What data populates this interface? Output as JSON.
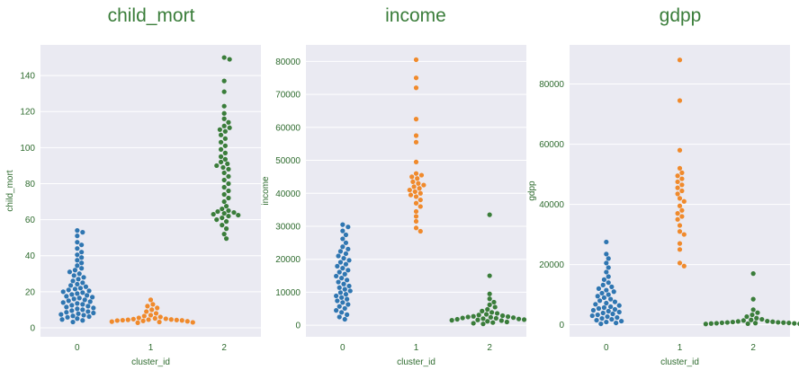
{
  "colors": {
    "title": "#3a7d3a",
    "label": "#2e6b2e",
    "tick": "#2e6b2e",
    "plot_bg": "#eaeaf2",
    "grid": "#ffffff",
    "cluster_0": "#2f76b1",
    "cluster_1": "#f08a2c",
    "cluster_2": "#3a7d3a"
  },
  "chart_data": [
    {
      "type": "scatter",
      "subtype": "swarm",
      "title": "child_mort",
      "xlabel": "cluster_id",
      "ylabel": "child_mort",
      "categories": [
        "0",
        "1",
        "2"
      ],
      "ylim": [
        -5,
        157
      ],
      "yticks": [
        0,
        20,
        40,
        60,
        80,
        100,
        120,
        140
      ],
      "grid": true,
      "series": [
        {
          "category": "0",
          "values": [
            3.2,
            4.1,
            4.6,
            5.1,
            5.8,
            6.2,
            6.6,
            7.0,
            7.4,
            7.8,
            8.2,
            8.6,
            9.0,
            9.5,
            10.0,
            10.5,
            11.0,
            11.5,
            12.0,
            12.5,
            13.0,
            13.5,
            14.0,
            14.5,
            15.0,
            15.5,
            16.0,
            16.5,
            17.0,
            17.5,
            18.0,
            18.5,
            19.0,
            19.5,
            20.0,
            20.5,
            21.0,
            21.5,
            22.0,
            22.8,
            23.5,
            24.2,
            25.0,
            26.0,
            27.0,
            28.0,
            29.0,
            30.0,
            31.0,
            32.0,
            33.0,
            34.5,
            36.0,
            37.5,
            39.0,
            40.5,
            42.0,
            44.0,
            46.0,
            47.5,
            51.0,
            53.0,
            54.0
          ]
        },
        {
          "category": "1",
          "values": [
            2.8,
            3.0,
            3.2,
            3.4,
            3.6,
            3.8,
            4.0,
            4.1,
            4.2,
            4.3,
            4.4,
            4.5,
            4.6,
            4.8,
            5.0,
            5.2,
            5.5,
            6.0,
            6.5,
            7.0,
            8.0,
            9.0,
            10.0,
            11.0,
            12.0,
            13.0,
            15.5
          ]
        },
        {
          "category": "2",
          "values": [
            49.5,
            52.0,
            55.0,
            57.0,
            59.0,
            60.0,
            61.0,
            62.0,
            62.5,
            63.0,
            63.5,
            64.0,
            64.5,
            65.0,
            66.0,
            67.5,
            70.0,
            72.0,
            74.0,
            76.0,
            78.0,
            80.0,
            82.0,
            84.0,
            86.0,
            88.0,
            89.0,
            90.0,
            91.0,
            92.0,
            93.5,
            95.0,
            97.0,
            99.0,
            101.0,
            103.0,
            105.0,
            107.0,
            109.0,
            110.0,
            111.0,
            112.0,
            114.0,
            116.0,
            119.0,
            123.0,
            131.0,
            137.0,
            149.0,
            150.0
          ]
        }
      ]
    },
    {
      "type": "scatter",
      "subtype": "swarm",
      "title": "income",
      "xlabel": "cluster_id",
      "ylabel": "income",
      "categories": [
        "0",
        "1",
        "2"
      ],
      "ylim": [
        -3500,
        85000
      ],
      "yticks": [
        0,
        10000,
        20000,
        30000,
        40000,
        50000,
        60000,
        70000,
        80000
      ],
      "grid": true,
      "series": [
        {
          "category": "0",
          "values": [
            1800,
            2500,
            3200,
            3900,
            4500,
            5100,
            5700,
            6300,
            6900,
            7400,
            7900,
            8400,
            8900,
            9400,
            9900,
            10400,
            10900,
            11400,
            11900,
            12500,
            13100,
            13700,
            14300,
            14900,
            15500,
            16100,
            16700,
            17300,
            17900,
            18500,
            19100,
            19700,
            20300,
            21000,
            21700,
            22400,
            23100,
            23800,
            25000,
            26200,
            27400,
            28600,
            29800,
            30500
          ]
        },
        {
          "category": "1",
          "values": [
            28500,
            29500,
            31500,
            33000,
            34500,
            36000,
            37000,
            38000,
            39000,
            39500,
            40000,
            40500,
            41000,
            41500,
            42000,
            42500,
            43000,
            43500,
            44500,
            45000,
            45500,
            46000,
            49500,
            55500,
            57500,
            62500,
            72000,
            75000,
            80500
          ]
        },
        {
          "category": "2",
          "values": [
            400,
            600,
            800,
            1000,
            1200,
            1400,
            1500,
            1600,
            1700,
            1800,
            1900,
            2000,
            2100,
            2200,
            2300,
            2400,
            2500,
            2600,
            2700,
            2900,
            3100,
            3300,
            3600,
            3900,
            4300,
            4800,
            5500,
            6200,
            7000,
            8000,
            9500,
            15000,
            33500
          ]
        }
      ]
    },
    {
      "type": "scatter",
      "subtype": "swarm",
      "title": "gdpp",
      "xlabel": "cluster_id",
      "ylabel": "gdpp",
      "categories": [
        "0",
        "1",
        "2"
      ],
      "ylim": [
        -4000,
        93000
      ],
      "yticks": [
        0,
        20000,
        40000,
        60000,
        80000
      ],
      "grid": true,
      "series": [
        {
          "category": "0",
          "values": [
            300,
            600,
            900,
            1200,
            1500,
            1800,
            2100,
            2400,
            2700,
            3000,
            3300,
            3600,
            3900,
            4200,
            4500,
            4800,
            5100,
            5400,
            5700,
            6000,
            6400,
            6800,
            7200,
            7600,
            8000,
            8500,
            9000,
            9500,
            10000,
            10500,
            11000,
            11500,
            12000,
            12600,
            13200,
            14000,
            15000,
            16000,
            17500,
            19000,
            20500,
            22000,
            23500,
            27500
          ]
        },
        {
          "category": "1",
          "values": [
            19500,
            20500,
            25000,
            27000,
            30000,
            31000,
            33000,
            35000,
            36000,
            37000,
            38000,
            39500,
            41000,
            42000,
            43500,
            44500,
            45500,
            46500,
            47500,
            48500,
            49500,
            50500,
            52000,
            58000,
            74500,
            88000
          ]
        },
        {
          "category": "2",
          "values": [
            200,
            250,
            300,
            350,
            400,
            450,
            500,
            550,
            600,
            650,
            700,
            750,
            800,
            900,
            1000,
            1100,
            1200,
            1400,
            1600,
            1800,
            2200,
            2700,
            3300,
            4000,
            5000,
            8500,
            17000
          ]
        }
      ]
    }
  ]
}
